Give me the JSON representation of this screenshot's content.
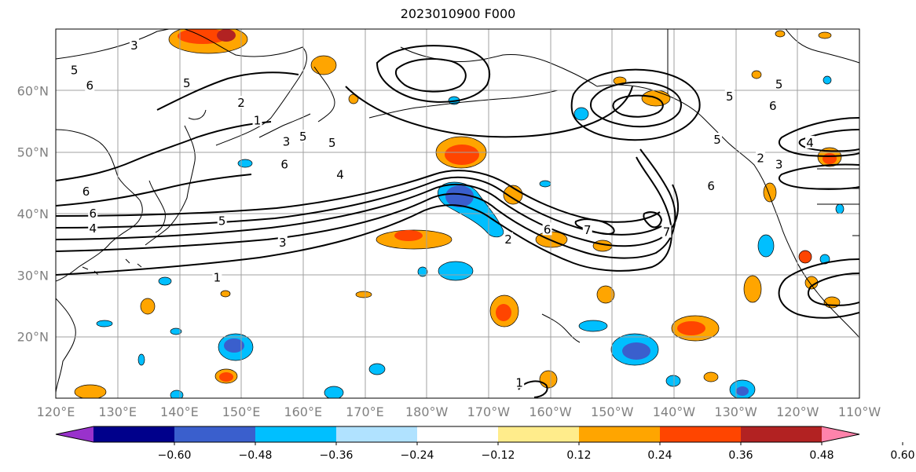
{
  "title": "2023010900 F000",
  "map": {
    "lon_labels": [
      "120°E",
      "130°E",
      "140°E",
      "150°E",
      "160°E",
      "170°E",
      "180°W",
      "170°W",
      "160°W",
      "150°W",
      "140°W",
      "130°W",
      "120°W",
      "110°W"
    ],
    "lat_labels": [
      "20°N",
      "30°N",
      "40°N",
      "50°N",
      "60°N"
    ],
    "lon_range": [
      120,
      250
    ],
    "lat_range": [
      10,
      70
    ],
    "grid": true
  },
  "colorbar": {
    "tick_labels": [
      "−0.60",
      "−0.48",
      "−0.36",
      "−0.24",
      "−0.12",
      "0.12",
      "0.24",
      "0.36",
      "0.48",
      "0.60"
    ],
    "colors": [
      "#9932cc",
      "#00008b",
      "#3a5fcd",
      "#00bfff",
      "#b0e2ff",
      "#ffffff",
      "#ffec8b",
      "#ffa500",
      "#ff4500",
      "#b22222",
      "#ff83ab"
    ],
    "extend": "both"
  },
  "contour_labels": [
    {
      "text": "5",
      "lon": 123.0,
      "lat": 63.3
    },
    {
      "text": "6",
      "lon": 125.5,
      "lat": 60.8
    },
    {
      "text": "3",
      "lon": 132.7,
      "lat": 67.3
    },
    {
      "text": "5",
      "lon": 141.2,
      "lat": 61.2
    },
    {
      "text": "5",
      "lon": 160.0,
      "lat": 52.5
    },
    {
      "text": "2",
      "lon": 150.0,
      "lat": 58.0
    },
    {
      "text": "1",
      "lon": 152.6,
      "lat": 55.1
    },
    {
      "text": "3",
      "lon": 157.3,
      "lat": 51.7
    },
    {
      "text": "6",
      "lon": 157.0,
      "lat": 48.0
    },
    {
      "text": "5",
      "lon": 164.7,
      "lat": 51.5
    },
    {
      "text": "4",
      "lon": 166.0,
      "lat": 46.3
    },
    {
      "text": "6",
      "lon": 124.9,
      "lat": 43.6
    },
    {
      "text": "6",
      "lon": 126.0,
      "lat": 40.0
    },
    {
      "text": "4",
      "lon": 126.0,
      "lat": 37.6
    },
    {
      "text": "5",
      "lon": 146.9,
      "lat": 38.8
    },
    {
      "text": "3",
      "lon": 156.7,
      "lat": 35.3
    },
    {
      "text": "1",
      "lon": 146.1,
      "lat": 29.6
    },
    {
      "text": "2",
      "lon": 193.2,
      "lat": 35.8
    },
    {
      "text": "6",
      "lon": 199.5,
      "lat": 37.4
    },
    {
      "text": "7",
      "lon": 206.0,
      "lat": 37.3
    },
    {
      "text": "7",
      "lon": 218.8,
      "lat": 37.0
    },
    {
      "text": "4",
      "lon": 242.0,
      "lat": 51.5
    },
    {
      "text": "2",
      "lon": 234.0,
      "lat": 49.0
    },
    {
      "text": "3",
      "lon": 237.0,
      "lat": 48.0
    },
    {
      "text": "5",
      "lon": 227.0,
      "lat": 52.0
    },
    {
      "text": "6",
      "lon": 226.0,
      "lat": 44.5
    },
    {
      "text": "5",
      "lon": 237.0,
      "lat": 61.0
    },
    {
      "text": "5",
      "lon": 229.0,
      "lat": 59.0
    },
    {
      "text": "6",
      "lon": 236.0,
      "lat": 57.5
    },
    {
      "text": "1",
      "lon": 195.0,
      "lat": 12.5
    }
  ]
}
